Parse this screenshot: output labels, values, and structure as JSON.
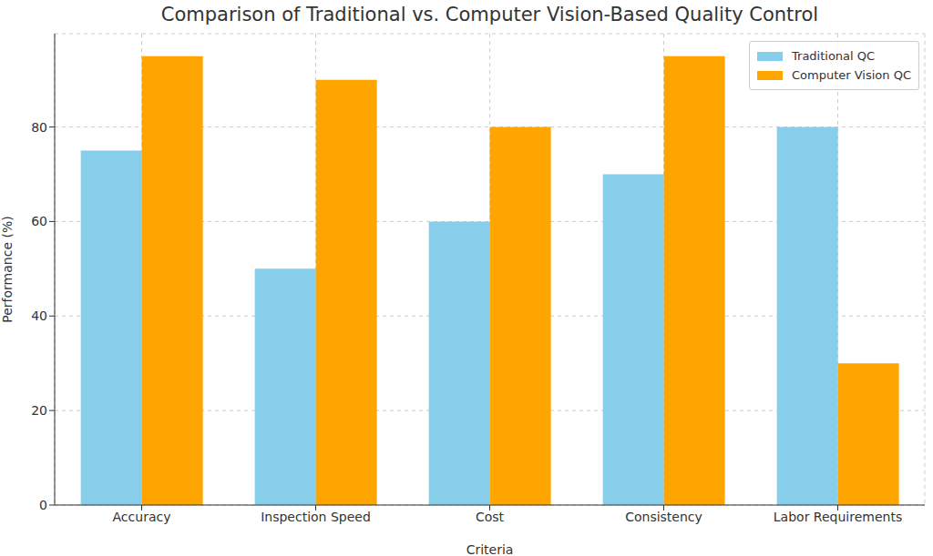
{
  "chart_data": {
    "type": "bar",
    "title": "Comparison of Traditional vs. Computer Vision-Based Quality Control",
    "x_label": "Criteria",
    "y_label": "Performance (%)",
    "categories": [
      "Accuracy",
      "Inspection Speed",
      "Cost",
      "Consistency",
      "Labor Requirements"
    ],
    "series": [
      {
        "name": "Traditional QC",
        "color": "#87ceeb",
        "values": [
          75,
          50,
          60,
          70,
          80
        ]
      },
      {
        "name": "Computer Vision QC",
        "color": "#ffa500",
        "values": [
          95,
          90,
          80,
          95,
          30
        ]
      }
    ],
    "ylim": [
      0,
      99.75
    ],
    "yticks": [
      0,
      20,
      40,
      60,
      80
    ],
    "grid": true,
    "legend": "upper right"
  }
}
